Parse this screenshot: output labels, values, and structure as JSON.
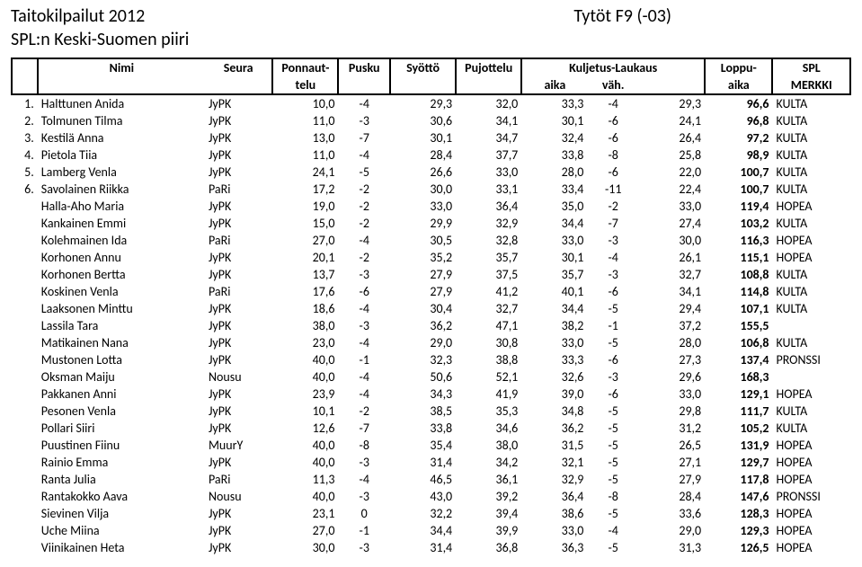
{
  "header": {
    "title_left": "Taitokilpailut 2012",
    "title_right": "Tytöt F9 (-03)",
    "subtitle": "SPL:n Keski-Suomen piiri"
  },
  "columns": {
    "nimi": "Nimi",
    "seura": "Seura",
    "ponnaut": "Ponnaut-",
    "ponnaut2": "telu",
    "pusku": "Pusku",
    "syotto": "Syöttö",
    "pujottelu": "Pujottelu",
    "kuljetus": "Kuljetus-Laukaus",
    "kuljetus_aika": "aika",
    "kuljetus_vah": "väh.",
    "loppu": "Loppu-",
    "loppu2": "aika",
    "spl": "SPL",
    "spl2": "MERKKI"
  },
  "rows": [
    {
      "rank": "1.",
      "name": "Halttunen Anida",
      "club": "JyPK",
      "pon": "10,0",
      "pus": "-4",
      "syo": "29,3",
      "puj": "32,0",
      "ka": "33,3",
      "kv": "-4",
      "la": "29,3",
      "tot": "96,6",
      "med": "KULTA"
    },
    {
      "rank": "2.",
      "name": "Tolmunen Tilma",
      "club": "JyPK",
      "pon": "11,0",
      "pus": "-3",
      "syo": "30,6",
      "puj": "34,1",
      "ka": "30,1",
      "kv": "-6",
      "la": "24,1",
      "tot": "96,8",
      "med": "KULTA"
    },
    {
      "rank": "3.",
      "name": "Kestilä Anna",
      "club": "JyPK",
      "pon": "13,0",
      "pus": "-7",
      "syo": "30,1",
      "puj": "34,7",
      "ka": "32,4",
      "kv": "-6",
      "la": "26,4",
      "tot": "97,2",
      "med": "KULTA"
    },
    {
      "rank": "4.",
      "name": "Pietola Tiia",
      "club": "JyPK",
      "pon": "11,0",
      "pus": "-4",
      "syo": "28,4",
      "puj": "37,7",
      "ka": "33,8",
      "kv": "-8",
      "la": "25,8",
      "tot": "98,9",
      "med": "KULTA"
    },
    {
      "rank": "5.",
      "name": "Lamberg Venla",
      "club": "JyPK",
      "pon": "24,1",
      "pus": "-5",
      "syo": "26,6",
      "puj": "33,0",
      "ka": "28,0",
      "kv": "-6",
      "la": "22,0",
      "tot": "100,7",
      "med": "KULTA"
    },
    {
      "rank": "6.",
      "name": "Savolainen Riikka",
      "club": "PaRi",
      "pon": "17,2",
      "pus": "-2",
      "syo": "30,0",
      "puj": "33,1",
      "ka": "33,4",
      "kv": "-11",
      "la": "22,4",
      "tot": "100,7",
      "med": "KULTA"
    },
    {
      "rank": "",
      "name": "Halla-Aho Maria",
      "club": "JyPK",
      "pon": "19,0",
      "pus": "-2",
      "syo": "33,0",
      "puj": "36,4",
      "ka": "35,0",
      "kv": "-2",
      "la": "33,0",
      "tot": "119,4",
      "med": "HOPEA"
    },
    {
      "rank": "",
      "name": "Kankainen Emmi",
      "club": "JyPK",
      "pon": "15,0",
      "pus": "-2",
      "syo": "29,9",
      "puj": "32,9",
      "ka": "34,4",
      "kv": "-7",
      "la": "27,4",
      "tot": "103,2",
      "med": "KULTA"
    },
    {
      "rank": "",
      "name": "Kolehmainen Ida",
      "club": "PaRi",
      "pon": "27,0",
      "pus": "-4",
      "syo": "30,5",
      "puj": "32,8",
      "ka": "33,0",
      "kv": "-3",
      "la": "30,0",
      "tot": "116,3",
      "med": "HOPEA"
    },
    {
      "rank": "",
      "name": "Korhonen Annu",
      "club": "JyPK",
      "pon": "20,1",
      "pus": "-2",
      "syo": "35,2",
      "puj": "35,7",
      "ka": "30,1",
      "kv": "-4",
      "la": "26,1",
      "tot": "115,1",
      "med": "HOPEA"
    },
    {
      "rank": "",
      "name": "Korhonen Bertta",
      "club": "JyPK",
      "pon": "13,7",
      "pus": "-3",
      "syo": "27,9",
      "puj": "37,5",
      "ka": "35,7",
      "kv": "-3",
      "la": "32,7",
      "tot": "108,8",
      "med": "KULTA"
    },
    {
      "rank": "",
      "name": "Koskinen Venla",
      "club": "PaRi",
      "pon": "17,6",
      "pus": "-6",
      "syo": "27,9",
      "puj": "41,2",
      "ka": "40,1",
      "kv": "-6",
      "la": "34,1",
      "tot": "114,8",
      "med": "KULTA"
    },
    {
      "rank": "",
      "name": "Laaksonen Minttu",
      "club": "JyPK",
      "pon": "18,6",
      "pus": "-4",
      "syo": "30,4",
      "puj": "32,7",
      "ka": "34,4",
      "kv": "-5",
      "la": "29,4",
      "tot": "107,1",
      "med": "KULTA"
    },
    {
      "rank": "",
      "name": "Lassila Tara",
      "club": "JyPK",
      "pon": "38,0",
      "pus": "-3",
      "syo": "36,2",
      "puj": "47,1",
      "ka": "38,2",
      "kv": "-1",
      "la": "37,2",
      "tot": "155,5",
      "med": ""
    },
    {
      "rank": "",
      "name": "Matikainen Nana",
      "club": "JyPK",
      "pon": "23,0",
      "pus": "-4",
      "syo": "29,0",
      "puj": "30,8",
      "ka": "33,0",
      "kv": "-5",
      "la": "28,0",
      "tot": "106,8",
      "med": "KULTA"
    },
    {
      "rank": "",
      "name": "Mustonen Lotta",
      "club": "JyPK",
      "pon": "40,0",
      "pus": "-1",
      "syo": "32,3",
      "puj": "38,8",
      "ka": "33,3",
      "kv": "-6",
      "la": "27,3",
      "tot": "137,4",
      "med": "PRONSSI"
    },
    {
      "rank": "",
      "name": "Oksman Maiju",
      "club": "Nousu",
      "pon": "40,0",
      "pus": "-4",
      "syo": "50,6",
      "puj": "52,1",
      "ka": "32,6",
      "kv": "-3",
      "la": "29,6",
      "tot": "168,3",
      "med": ""
    },
    {
      "rank": "",
      "name": "Pakkanen Anni",
      "club": "JyPK",
      "pon": "23,9",
      "pus": "-4",
      "syo": "34,3",
      "puj": "41,9",
      "ka": "39,0",
      "kv": "-6",
      "la": "33,0",
      "tot": "129,1",
      "med": "HOPEA"
    },
    {
      "rank": "",
      "name": "Pesonen Venla",
      "club": "JyPK",
      "pon": "10,1",
      "pus": "-2",
      "syo": "38,5",
      "puj": "35,3",
      "ka": "34,8",
      "kv": "-5",
      "la": "29,8",
      "tot": "111,7",
      "med": "KULTA"
    },
    {
      "rank": "",
      "name": "Pollari Siiri",
      "club": "JyPK",
      "pon": "12,6",
      "pus": "-7",
      "syo": "33,8",
      "puj": "34,6",
      "ka": "36,2",
      "kv": "-5",
      "la": "31,2",
      "tot": "105,2",
      "med": "KULTA"
    },
    {
      "rank": "",
      "name": "Puustinen Fiinu",
      "club": "MuurY",
      "pon": "40,0",
      "pus": "-8",
      "syo": "35,4",
      "puj": "38,0",
      "ka": "31,5",
      "kv": "-5",
      "la": "26,5",
      "tot": "131,9",
      "med": "HOPEA"
    },
    {
      "rank": "",
      "name": "Rainio Emma",
      "club": "JyPK",
      "pon": "40,0",
      "pus": "-3",
      "syo": "31,4",
      "puj": "34,2",
      "ka": "32,1",
      "kv": "-5",
      "la": "27,1",
      "tot": "129,7",
      "med": "HOPEA"
    },
    {
      "rank": "",
      "name": "Ranta Julia",
      "club": "PaRi",
      "pon": "11,3",
      "pus": "-4",
      "syo": "46,5",
      "puj": "36,1",
      "ka": "32,9",
      "kv": "-5",
      "la": "27,9",
      "tot": "117,8",
      "med": "HOPEA"
    },
    {
      "rank": "",
      "name": "Rantakokko Aava",
      "club": "Nousu",
      "pon": "40,0",
      "pus": "-3",
      "syo": "43,0",
      "puj": "39,2",
      "ka": "36,4",
      "kv": "-8",
      "la": "28,4",
      "tot": "147,6",
      "med": "PRONSSI"
    },
    {
      "rank": "",
      "name": "Sievinen Vilja",
      "club": "JyPK",
      "pon": "23,1",
      "pus": "0",
      "syo": "32,2",
      "puj": "39,4",
      "ka": "38,6",
      "kv": "-5",
      "la": "33,6",
      "tot": "128,3",
      "med": "HOPEA"
    },
    {
      "rank": "",
      "name": "Uche Miina",
      "club": "JyPK",
      "pon": "27,0",
      "pus": "-1",
      "syo": "34,4",
      "puj": "39,9",
      "ka": "33,0",
      "kv": "-4",
      "la": "29,0",
      "tot": "129,3",
      "med": "HOPEA"
    },
    {
      "rank": "",
      "name": "Viinikainen Heta",
      "club": "JyPK",
      "pon": "30,0",
      "pus": "-3",
      "syo": "31,4",
      "puj": "36,8",
      "ka": "36,3",
      "kv": "-5",
      "la": "31,3",
      "tot": "126,5",
      "med": "HOPEA"
    }
  ],
  "styling": {
    "background_color": "#ffffff",
    "text_color": "#000000",
    "border_color": "#000000",
    "title_fontsize": 20,
    "body_fontsize": 14,
    "font_family": "Calibri"
  }
}
